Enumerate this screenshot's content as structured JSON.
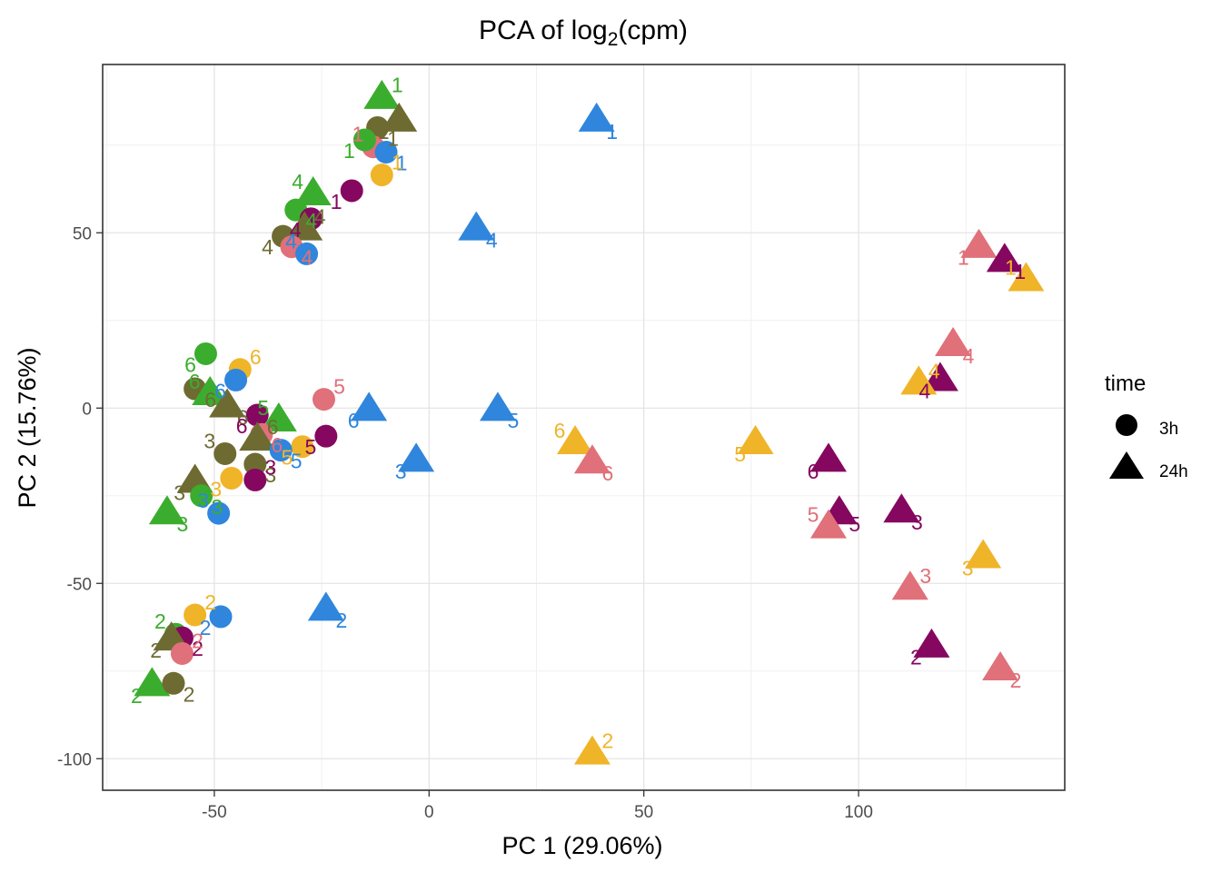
{
  "chart_data": {
    "type": "scatter",
    "title": {
      "main": "PCA of log",
      "sub": "2",
      "tail": "(cpm)"
    },
    "xlabel": "PC 1 (29.06%)",
    "ylabel": "PC 2 (15.76%)",
    "xlim": [
      -76,
      148
    ],
    "ylim": [
      -109,
      98
    ],
    "xticks": [
      -50,
      0,
      50,
      100
    ],
    "yticks": [
      50,
      0,
      -50,
      -100
    ],
    "xtick_labels": [
      "-50",
      "0",
      "50",
      "100"
    ],
    "ytick_labels": [
      "50",
      "0",
      "-50",
      "-100"
    ],
    "grid": true,
    "legend": {
      "title": "time",
      "position": "right",
      "items": [
        {
          "label": "3h",
          "shape": "circle"
        },
        {
          "label": "24h",
          "shape": "triangle"
        }
      ]
    },
    "colors": {
      "green": "#3BAD2E",
      "olive": "#6E6B32",
      "blue": "#2F86DC",
      "pink": "#E07079",
      "purple": "#85075F",
      "yellow": "#F0B429"
    },
    "points": [
      {
        "x": -11,
        "y": 88.5,
        "shape": "triangle",
        "color": "green",
        "label": "1"
      },
      {
        "x": -7,
        "y": 82,
        "shape": "triangle",
        "color": "olive",
        "label": "1"
      },
      {
        "x": -12,
        "y": 80,
        "shape": "circle",
        "color": "olive",
        "label": "1"
      },
      {
        "x": -13,
        "y": 74.5,
        "shape": "circle",
        "color": "pink",
        "label": "1"
      },
      {
        "x": -10,
        "y": 73,
        "shape": "circle",
        "color": "blue",
        "label": "1"
      },
      {
        "x": -15,
        "y": 76.5,
        "shape": "circle",
        "color": "green",
        "label": "1"
      },
      {
        "x": -11,
        "y": 66.5,
        "shape": "circle",
        "color": "yellow",
        "label": "1"
      },
      {
        "x": -18,
        "y": 62,
        "shape": "circle",
        "color": "purple",
        "label": "1"
      },
      {
        "x": 39,
        "y": 82,
        "shape": "triangle",
        "color": "blue",
        "label": "1"
      },
      {
        "x": -27,
        "y": 61,
        "shape": "triangle",
        "color": "green",
        "label": "4"
      },
      {
        "x": -31,
        "y": 56.5,
        "shape": "circle",
        "color": "green",
        "label": "4"
      },
      {
        "x": -27.5,
        "y": 54,
        "shape": "circle",
        "color": "purple",
        "label": "4"
      },
      {
        "x": -29,
        "y": 51,
        "shape": "triangle",
        "color": "olive",
        "label": "4"
      },
      {
        "x": -34,
        "y": 49,
        "shape": "circle",
        "color": "olive",
        "label": "4"
      },
      {
        "x": -32,
        "y": 46,
        "shape": "circle",
        "color": "pink",
        "label": "4"
      },
      {
        "x": -28.5,
        "y": 44,
        "shape": "circle",
        "color": "blue",
        "label": "4"
      },
      {
        "x": 11,
        "y": 51,
        "shape": "triangle",
        "color": "blue",
        "label": "4"
      },
      {
        "x": -52,
        "y": 15.5,
        "shape": "circle",
        "color": "green",
        "label": "6"
      },
      {
        "x": -44,
        "y": 11,
        "shape": "circle",
        "color": "yellow",
        "label": "6"
      },
      {
        "x": -45,
        "y": 8,
        "shape": "circle",
        "color": "blue",
        "label": "6"
      },
      {
        "x": -54.5,
        "y": 5.5,
        "shape": "circle",
        "color": "olive",
        "label": "6"
      },
      {
        "x": -51,
        "y": 4,
        "shape": "triangle",
        "color": "green",
        "label": "6"
      },
      {
        "x": -47,
        "y": 0.5,
        "shape": "triangle",
        "color": "olive",
        "label": "6"
      },
      {
        "x": -40,
        "y": -2,
        "shape": "circle",
        "color": "purple",
        "label": "6"
      },
      {
        "x": -24.5,
        "y": 2.5,
        "shape": "circle",
        "color": "pink",
        "label": "5"
      },
      {
        "x": -14,
        "y": -0.5,
        "shape": "triangle",
        "color": "blue",
        "label": "6"
      },
      {
        "x": 16,
        "y": -0.5,
        "shape": "triangle",
        "color": "blue",
        "label": "5"
      },
      {
        "x": -35,
        "y": -3.5,
        "shape": "triangle",
        "color": "green",
        "label": "5"
      },
      {
        "x": -39,
        "y": -7.5,
        "shape": "circle",
        "color": "pink",
        "label": "6"
      },
      {
        "x": -24,
        "y": -8,
        "shape": "circle",
        "color": "purple",
        "label": "5"
      },
      {
        "x": -40,
        "y": -9,
        "shape": "triangle",
        "color": "olive",
        "label": "6"
      },
      {
        "x": -29.5,
        "y": -11,
        "shape": "circle",
        "color": "yellow",
        "label": "5"
      },
      {
        "x": -34.5,
        "y": -12,
        "shape": "circle",
        "color": "blue",
        "label": "5"
      },
      {
        "x": -47.5,
        "y": -13,
        "shape": "circle",
        "color": "olive",
        "label": "3"
      },
      {
        "x": -40.5,
        "y": -16,
        "shape": "circle",
        "color": "olive",
        "label": "3"
      },
      {
        "x": -46,
        "y": -20,
        "shape": "circle",
        "color": "yellow",
        "label": "3"
      },
      {
        "x": -40.5,
        "y": -20.5,
        "shape": "circle",
        "color": "purple",
        "label": "3"
      },
      {
        "x": -54.5,
        "y": -21,
        "shape": "triangle",
        "color": "olive",
        "label": "3"
      },
      {
        "x": -53,
        "y": -25,
        "shape": "circle",
        "color": "green",
        "label": "3"
      },
      {
        "x": -49,
        "y": -30,
        "shape": "circle",
        "color": "blue",
        "label": "3"
      },
      {
        "x": -61,
        "y": -30,
        "shape": "triangle",
        "color": "green",
        "label": "3"
      },
      {
        "x": -3,
        "y": -15,
        "shape": "triangle",
        "color": "blue",
        "label": "3"
      },
      {
        "x": -54.5,
        "y": -59,
        "shape": "circle",
        "color": "yellow",
        "label": "2"
      },
      {
        "x": -48.5,
        "y": -59.5,
        "shape": "circle",
        "color": "blue",
        "label": "2"
      },
      {
        "x": -24,
        "y": -57.5,
        "shape": "triangle",
        "color": "blue",
        "label": "2"
      },
      {
        "x": -59,
        "y": -64.5,
        "shape": "circle",
        "color": "green",
        "label": "2"
      },
      {
        "x": -57.5,
        "y": -65.5,
        "shape": "circle",
        "color": "purple",
        "label": "2"
      },
      {
        "x": -60,
        "y": -66,
        "shape": "triangle",
        "color": "olive",
        "label": "2"
      },
      {
        "x": -57.5,
        "y": -70,
        "shape": "circle",
        "color": "pink",
        "label": "2"
      },
      {
        "x": -64.5,
        "y": -79,
        "shape": "triangle",
        "color": "green",
        "label": "2"
      },
      {
        "x": -59.5,
        "y": -78.5,
        "shape": "circle",
        "color": "olive",
        "label": "2"
      },
      {
        "x": 34,
        "y": -10,
        "shape": "triangle",
        "color": "yellow",
        "label": "6"
      },
      {
        "x": 38,
        "y": -15.5,
        "shape": "triangle",
        "color": "pink",
        "label": "6"
      },
      {
        "x": 76,
        "y": -10,
        "shape": "triangle",
        "color": "yellow",
        "label": "5"
      },
      {
        "x": 38,
        "y": -98.5,
        "shape": "triangle",
        "color": "yellow",
        "label": "2"
      },
      {
        "x": 128,
        "y": 46,
        "shape": "triangle",
        "color": "pink",
        "label": "1"
      },
      {
        "x": 134,
        "y": 42,
        "shape": "triangle",
        "color": "purple",
        "label": "1"
      },
      {
        "x": 139,
        "y": 36.5,
        "shape": "triangle",
        "color": "yellow",
        "label": "1"
      },
      {
        "x": 122,
        "y": 18,
        "shape": "triangle",
        "color": "pink",
        "label": "4"
      },
      {
        "x": 119,
        "y": 8,
        "shape": "triangle",
        "color": "purple",
        "label": "4"
      },
      {
        "x": 114,
        "y": 7,
        "shape": "triangle",
        "color": "yellow",
        "label": "4"
      },
      {
        "x": 93,
        "y": -15,
        "shape": "triangle",
        "color": "purple",
        "label": "6"
      },
      {
        "x": 95.5,
        "y": -30,
        "shape": "triangle",
        "color": "purple",
        "label": "5"
      },
      {
        "x": 93,
        "y": -34,
        "shape": "triangle",
        "color": "pink",
        "label": "5"
      },
      {
        "x": 110,
        "y": -29.5,
        "shape": "triangle",
        "color": "purple",
        "label": "3"
      },
      {
        "x": 129,
        "y": -42.5,
        "shape": "triangle",
        "color": "yellow",
        "label": "3"
      },
      {
        "x": 112,
        "y": -51.5,
        "shape": "triangle",
        "color": "pink",
        "label": "3"
      },
      {
        "x": 117,
        "y": -68,
        "shape": "triangle",
        "color": "purple",
        "label": "2"
      },
      {
        "x": 133,
        "y": -74.5,
        "shape": "triangle",
        "color": "pink",
        "label": "2"
      }
    ]
  }
}
